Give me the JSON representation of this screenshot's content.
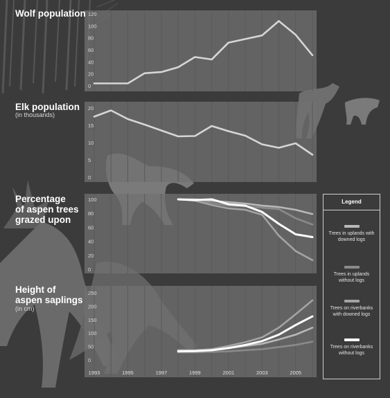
{
  "panels": {
    "wolf": {
      "title": "Wolf population",
      "subtitle": ""
    },
    "elk": {
      "title": "Elk population",
      "subtitle": "(in thousands)"
    },
    "grazed": {
      "title": "Percentage\nof aspen trees\ngrazed upon",
      "subtitle": ""
    },
    "height": {
      "title": "Height of\naspen saplings",
      "subtitle": "(in cm)"
    }
  },
  "legend": {
    "title": "Legend",
    "items": [
      {
        "label": "Trees in uplands with downed logs",
        "color": "#b8b8b8"
      },
      {
        "label": "Trees in uplands without logs",
        "color": "#8a8a8a"
      },
      {
        "label": "Trees on riverbanks with downed logs",
        "color": "#a4a4a4"
      },
      {
        "label": "Trees on riverbanks without logs",
        "color": "#ffffff"
      }
    ]
  },
  "x_axis": {
    "ticks": [
      1993,
      1995,
      1997,
      1999,
      2001,
      2003,
      2005
    ],
    "gridline_years": [
      1993,
      1994,
      1995,
      1996,
      1997,
      1998,
      1999,
      2000,
      2001,
      2002,
      2003,
      2004,
      2005,
      2006
    ]
  },
  "chart_data": [
    {
      "type": "line",
      "title": "Wolf population",
      "ylim": [
        0,
        120
      ],
      "yticks": [
        0,
        20,
        40,
        60,
        80,
        100,
        120
      ],
      "series": [
        {
          "color": "#d6d6d6",
          "x": [
            1993,
            1994,
            1995,
            1996,
            1997,
            1998,
            1999,
            2000,
            2001,
            2002,
            2003,
            2004,
            2005,
            2006
          ],
          "y": [
            4,
            4,
            4,
            21,
            23,
            31,
            48,
            44,
            72,
            78,
            84,
            108,
            85,
            51
          ]
        }
      ]
    },
    {
      "type": "line",
      "title": "Elk population",
      "ylabel": "(in thousands)",
      "ylim": [
        0,
        20
      ],
      "yticks": [
        0,
        5,
        10,
        15,
        20
      ],
      "series": [
        {
          "color": "#d6d6d6",
          "x": [
            1993,
            1994,
            1995,
            1996,
            1997,
            1998,
            1999,
            2000,
            2001,
            2002,
            2003,
            2004,
            2005,
            2006
          ],
          "y": [
            17.5,
            19.3,
            16.8,
            15.2,
            13.5,
            11.8,
            11.9,
            14.8,
            13.3,
            12.0,
            9.5,
            8.5,
            9.8,
            6.5
          ]
        }
      ]
    },
    {
      "type": "line",
      "title": "Percentage of aspen trees grazed upon",
      "ylim": [
        0,
        100
      ],
      "yticks": [
        0,
        20,
        40,
        60,
        80,
        100
      ],
      "series": [
        {
          "name": "Trees in uplands with downed logs",
          "color": "#b8b8b8",
          "x": [
            1998,
            1999,
            2000,
            2001,
            2002,
            2003,
            2004,
            2005,
            2006
          ],
          "y": [
            100,
            100,
            98,
            96,
            94,
            91,
            89,
            85,
            79
          ]
        },
        {
          "name": "Trees in uplands without logs",
          "color": "#8a8a8a",
          "x": [
            1998,
            1999,
            2000,
            2001,
            2002,
            2003,
            2004,
            2005,
            2006
          ],
          "y": [
            100,
            99,
            95,
            91,
            90,
            88,
            86,
            73,
            64
          ]
        },
        {
          "name": "Trees on riverbanks with downed logs",
          "color": "#a4a4a4",
          "x": [
            1998,
            1999,
            2000,
            2001,
            2002,
            2003,
            2004,
            2005,
            2006
          ],
          "y": [
            100,
            98,
            92,
            87,
            85,
            78,
            48,
            26,
            13
          ]
        },
        {
          "name": "Trees on riverbanks without logs",
          "color": "#ffffff",
          "x": [
            1998,
            1999,
            2000,
            2001,
            2002,
            2003,
            2004,
            2005,
            2006
          ],
          "y": [
            100,
            99,
            100,
            93,
            91,
            82,
            65,
            50,
            46
          ]
        }
      ]
    },
    {
      "type": "line",
      "title": "Height of aspen saplings",
      "ylabel": "(in cm)",
      "ylim": [
        0,
        250
      ],
      "yticks": [
        0,
        50,
        100,
        150,
        200,
        250
      ],
      "series": [
        {
          "name": "Trees in uplands with downed logs",
          "color": "#b8b8b8",
          "x": [
            1998,
            1999,
            2000,
            2001,
            2002,
            2003,
            2004,
            2005,
            2006
          ],
          "y": [
            36,
            36,
            40,
            44,
            52,
            60,
            76,
            94,
            120
          ]
        },
        {
          "name": "Trees in uplands without logs",
          "color": "#8a8a8a",
          "x": [
            1998,
            1999,
            2000,
            2001,
            2002,
            2003,
            2004,
            2005,
            2006
          ],
          "y": [
            28,
            28,
            30,
            32,
            36,
            40,
            48,
            56,
            68
          ]
        },
        {
          "name": "Trees on riverbanks with downed logs",
          "color": "#a4a4a4",
          "x": [
            1998,
            1999,
            2000,
            2001,
            2002,
            2003,
            2004,
            2005,
            2006
          ],
          "y": [
            32,
            34,
            40,
            52,
            66,
            84,
            120,
            170,
            222
          ]
        },
        {
          "name": "Trees on riverbanks without logs",
          "color": "#ffffff",
          "x": [
            1998,
            1999,
            2000,
            2001,
            2002,
            2003,
            2004,
            2005,
            2006
          ],
          "y": [
            32,
            33,
            36,
            44,
            56,
            70,
            94,
            130,
            162
          ]
        }
      ]
    }
  ]
}
